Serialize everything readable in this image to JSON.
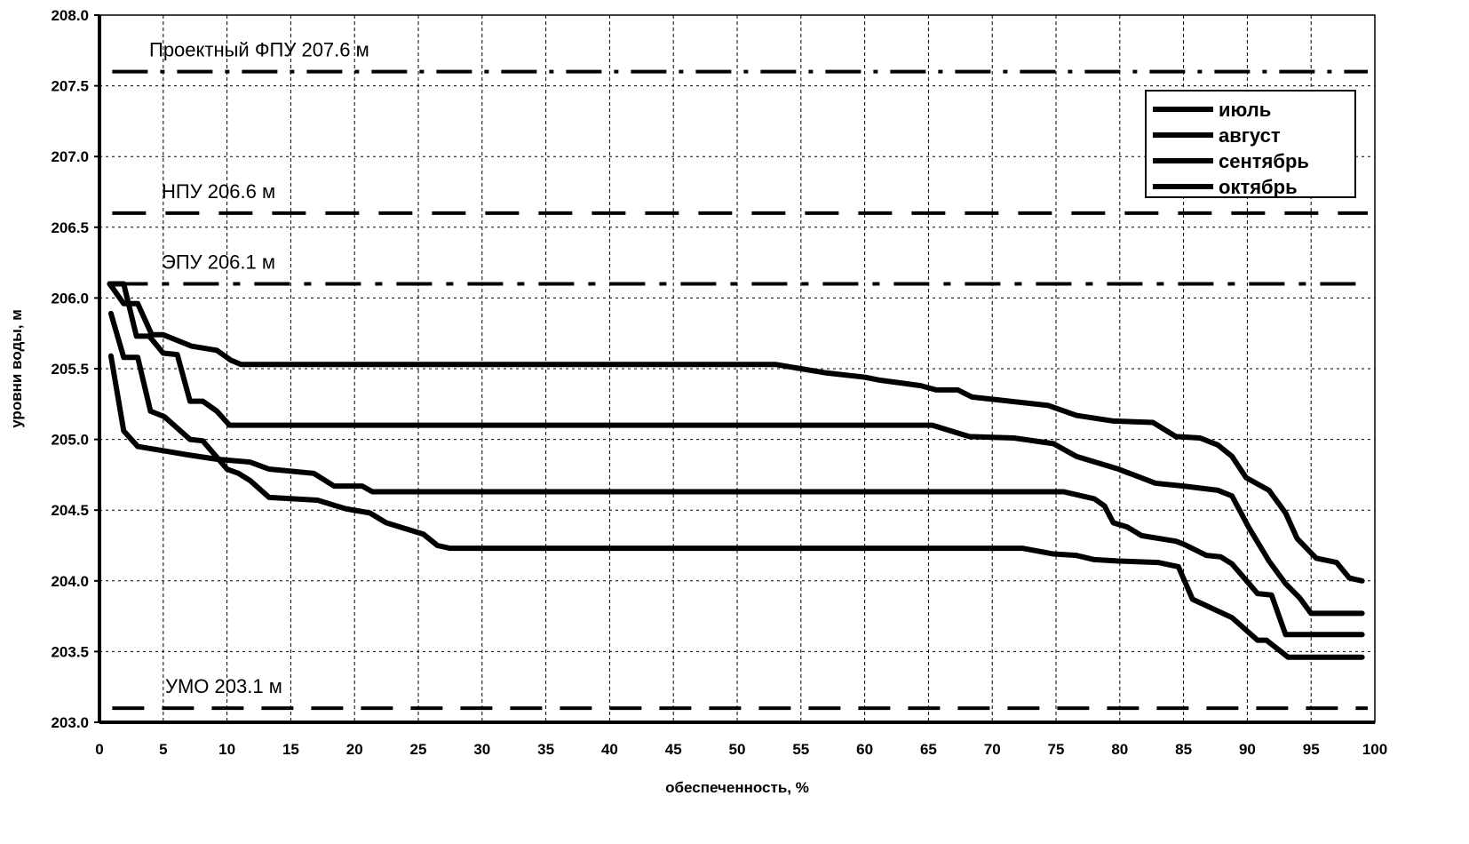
{
  "chart_data": {
    "type": "line",
    "title": "",
    "xlabel": "обеспеченность, %",
    "ylabel": "уровни воды, м",
    "xlim": [
      0,
      100
    ],
    "ylim": [
      203.0,
      208.0
    ],
    "xticks": [
      0,
      5,
      10,
      15,
      20,
      25,
      30,
      35,
      40,
      45,
      50,
      55,
      60,
      65,
      70,
      75,
      80,
      85,
      90,
      95,
      100
    ],
    "yticks": [
      "203.0",
      "203.5",
      "204.0",
      "204.5",
      "205.0",
      "205.5",
      "206.0",
      "206.5",
      "207.0",
      "207.5",
      "208.0"
    ],
    "grid": true,
    "legend_position": "top-right",
    "reference_lines": [
      {
        "label": "Проектный ФПУ 207.6 м",
        "y": 207.6,
        "style": "dash-dot-dot"
      },
      {
        "label": "НПУ 206.6 м",
        "y": 206.6,
        "style": "long-dash"
      },
      {
        "label": "ЭПУ 206.1 м",
        "y": 206.1,
        "style": "dash-dot"
      },
      {
        "label": "УМО 203.1 м",
        "y": 203.1,
        "style": "dash"
      }
    ],
    "series": [
      {
        "name": "июль",
        "points": [
          [
            0.8,
            206.1
          ],
          [
            1.9,
            205.96
          ],
          [
            3.0,
            205.96
          ],
          [
            4.1,
            205.74
          ],
          [
            5.0,
            205.74
          ],
          [
            7.2,
            205.66
          ],
          [
            9.2,
            205.63
          ],
          [
            10.3,
            205.56
          ],
          [
            11.1,
            205.53
          ],
          [
            53,
            205.53
          ],
          [
            55,
            205.5
          ],
          [
            57,
            205.47
          ],
          [
            60,
            205.44
          ],
          [
            61.1,
            205.42
          ],
          [
            64.4,
            205.38
          ],
          [
            65.6,
            205.35
          ],
          [
            67.3,
            205.35
          ],
          [
            68.4,
            205.3
          ],
          [
            70.4,
            205.28
          ],
          [
            74.4,
            205.24
          ],
          [
            76.6,
            205.17
          ],
          [
            79.5,
            205.13
          ],
          [
            82.6,
            205.12
          ],
          [
            84.4,
            205.02
          ],
          [
            86.3,
            205.01
          ],
          [
            87.7,
            204.96
          ],
          [
            88.8,
            204.88
          ],
          [
            89.9,
            204.73
          ],
          [
            91.7,
            204.64
          ],
          [
            93.0,
            204.48
          ],
          [
            93.9,
            204.3
          ],
          [
            95.4,
            204.16
          ],
          [
            97,
            204.13
          ],
          [
            98,
            204.02
          ],
          [
            99,
            204.0
          ]
        ]
      },
      {
        "name": "август",
        "points": [
          [
            0.8,
            206.1
          ],
          [
            1.9,
            206.1
          ],
          [
            2.9,
            205.73
          ],
          [
            3.9,
            205.73
          ],
          [
            5.0,
            205.61
          ],
          [
            6.1,
            205.6
          ],
          [
            7.1,
            205.27
          ],
          [
            8.1,
            205.27
          ],
          [
            9.2,
            205.2
          ],
          [
            10.2,
            205.1
          ],
          [
            65.3,
            205.1
          ],
          [
            68.2,
            205.02
          ],
          [
            71.7,
            205.01
          ],
          [
            74.8,
            204.97
          ],
          [
            76.6,
            204.88
          ],
          [
            79.9,
            204.79
          ],
          [
            82.8,
            204.69
          ],
          [
            85.0,
            204.67
          ],
          [
            87.7,
            204.64
          ],
          [
            88.8,
            204.6
          ],
          [
            90.1,
            204.38
          ],
          [
            91.7,
            204.14
          ],
          [
            93.0,
            203.98
          ],
          [
            94.1,
            203.88
          ],
          [
            95.0,
            203.77
          ],
          [
            99,
            203.77
          ]
        ]
      },
      {
        "name": "сентябрь",
        "points": [
          [
            0.9,
            205.59
          ],
          [
            1.9,
            205.06
          ],
          [
            3.0,
            204.95
          ],
          [
            5.0,
            204.92
          ],
          [
            7.0,
            204.89
          ],
          [
            9.2,
            204.86
          ],
          [
            11.8,
            204.84
          ],
          [
            13.3,
            204.79
          ],
          [
            16.8,
            204.76
          ],
          [
            18.4,
            204.67
          ],
          [
            20.6,
            204.67
          ],
          [
            21.4,
            204.63
          ],
          [
            75.6,
            204.63
          ],
          [
            78.0,
            204.58
          ],
          [
            78.8,
            204.53
          ],
          [
            79.5,
            204.41
          ],
          [
            80.6,
            204.38
          ],
          [
            81.7,
            204.32
          ],
          [
            84.4,
            204.28
          ],
          [
            85.0,
            204.26
          ],
          [
            86.8,
            204.18
          ],
          [
            87.9,
            204.17
          ],
          [
            88.8,
            204.12
          ],
          [
            90.8,
            203.91
          ],
          [
            91.9,
            203.9
          ],
          [
            93.0,
            203.62
          ],
          [
            99,
            203.62
          ]
        ]
      },
      {
        "name": "октябрь",
        "points": [
          [
            0.9,
            205.89
          ],
          [
            1.9,
            205.58
          ],
          [
            3.0,
            205.58
          ],
          [
            4.0,
            205.2
          ],
          [
            5.1,
            205.16
          ],
          [
            7.1,
            205.0
          ],
          [
            8.1,
            204.99
          ],
          [
            10.0,
            204.79
          ],
          [
            10.9,
            204.76
          ],
          [
            11.8,
            204.71
          ],
          [
            13.3,
            204.59
          ],
          [
            17.1,
            204.57
          ],
          [
            19.3,
            204.51
          ],
          [
            21.2,
            204.48
          ],
          [
            22.5,
            204.41
          ],
          [
            25.4,
            204.33
          ],
          [
            26.5,
            204.25
          ],
          [
            27.5,
            204.23
          ],
          [
            72.4,
            204.23
          ],
          [
            74.8,
            204.19
          ],
          [
            76.6,
            204.18
          ],
          [
            78.0,
            204.15
          ],
          [
            79.9,
            204.14
          ],
          [
            83.0,
            204.13
          ],
          [
            84.6,
            204.1
          ],
          [
            85.7,
            203.87
          ],
          [
            88.8,
            203.74
          ],
          [
            90.8,
            203.58
          ],
          [
            91.5,
            203.58
          ],
          [
            93.2,
            203.46
          ],
          [
            99,
            203.46
          ]
        ]
      }
    ]
  }
}
